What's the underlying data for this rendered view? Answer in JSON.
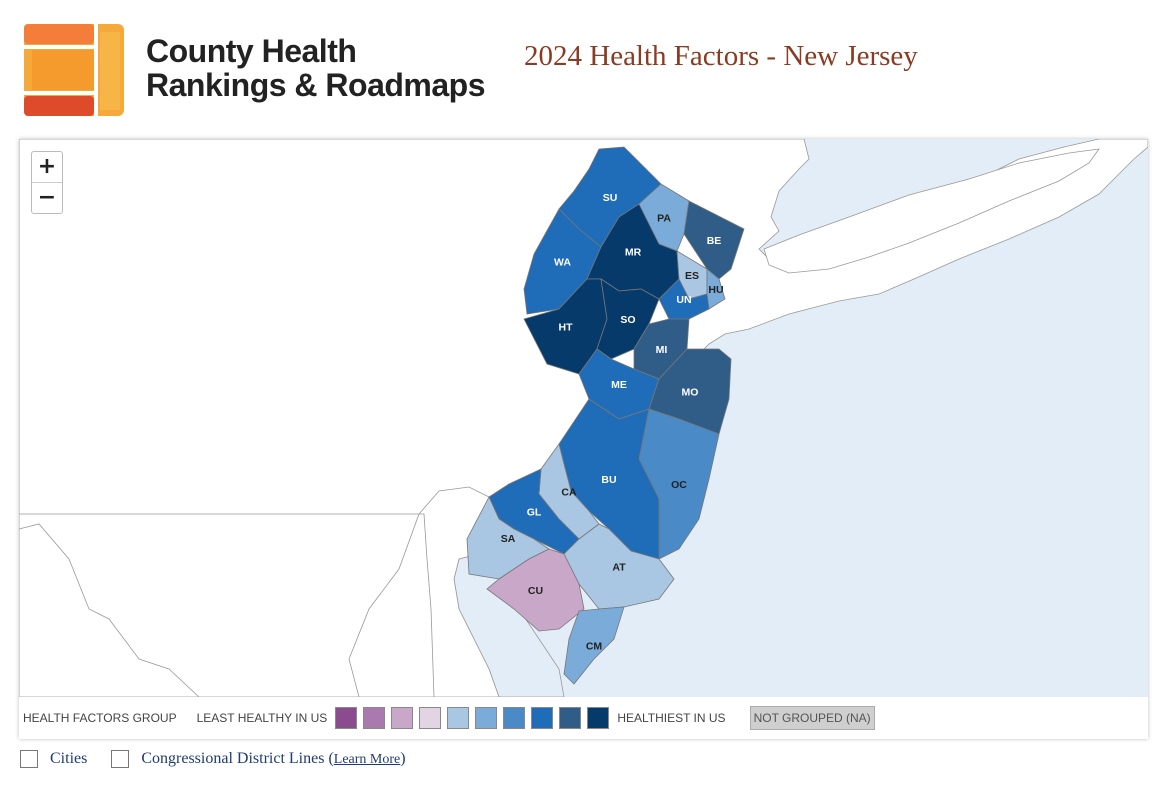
{
  "header": {
    "brand_line1": "County Health",
    "brand_line2": "Rankings & Roadmaps",
    "title": "2024 Health Factors - New Jersey"
  },
  "zoom": {
    "in_label": "+",
    "out_label": "−"
  },
  "legend": {
    "group_label": "HEALTH FACTORS GROUP",
    "least_label": "LEAST HEALTHY IN US",
    "healthiest_label": "HEALTHIEST IN US",
    "not_grouped_label": "NOT GROUPED (NA)",
    "swatches": [
      "#8b4c8f",
      "#a97aae",
      "#c9a7c9",
      "#e3d4e4",
      "#a9c6e2",
      "#7aabd9",
      "#4a8ac7",
      "#1f6cb8",
      "#2f5d88",
      "#063a6b"
    ]
  },
  "options": {
    "cities_label": "Cities",
    "districts_label": "Congressional District Lines",
    "learn_more": "Learn More"
  },
  "counties": [
    {
      "code": "SU",
      "group": 8
    },
    {
      "code": "PA",
      "group": 6
    },
    {
      "code": "BE",
      "group": 9
    },
    {
      "code": "WA",
      "group": 8
    },
    {
      "code": "MR",
      "group": 10
    },
    {
      "code": "ES",
      "group": 5
    },
    {
      "code": "HU",
      "group": 6
    },
    {
      "code": "HT",
      "group": 10
    },
    {
      "code": "SO",
      "group": 10
    },
    {
      "code": "UN",
      "group": 8
    },
    {
      "code": "MI",
      "group": 9
    },
    {
      "code": "ME",
      "group": 8
    },
    {
      "code": "MO",
      "group": 9
    },
    {
      "code": "OC",
      "group": 7
    },
    {
      "code": "BU",
      "group": 8
    },
    {
      "code": "CA",
      "group": 5
    },
    {
      "code": "GL",
      "group": 8
    },
    {
      "code": "SA",
      "group": 5
    },
    {
      "code": "AT",
      "group": 5
    },
    {
      "code": "CU",
      "group": 3
    },
    {
      "code": "CM",
      "group": 6
    }
  ],
  "colors": {
    "water": "#e3edf7",
    "land": "#ffffff",
    "title": "#8a3b22"
  }
}
